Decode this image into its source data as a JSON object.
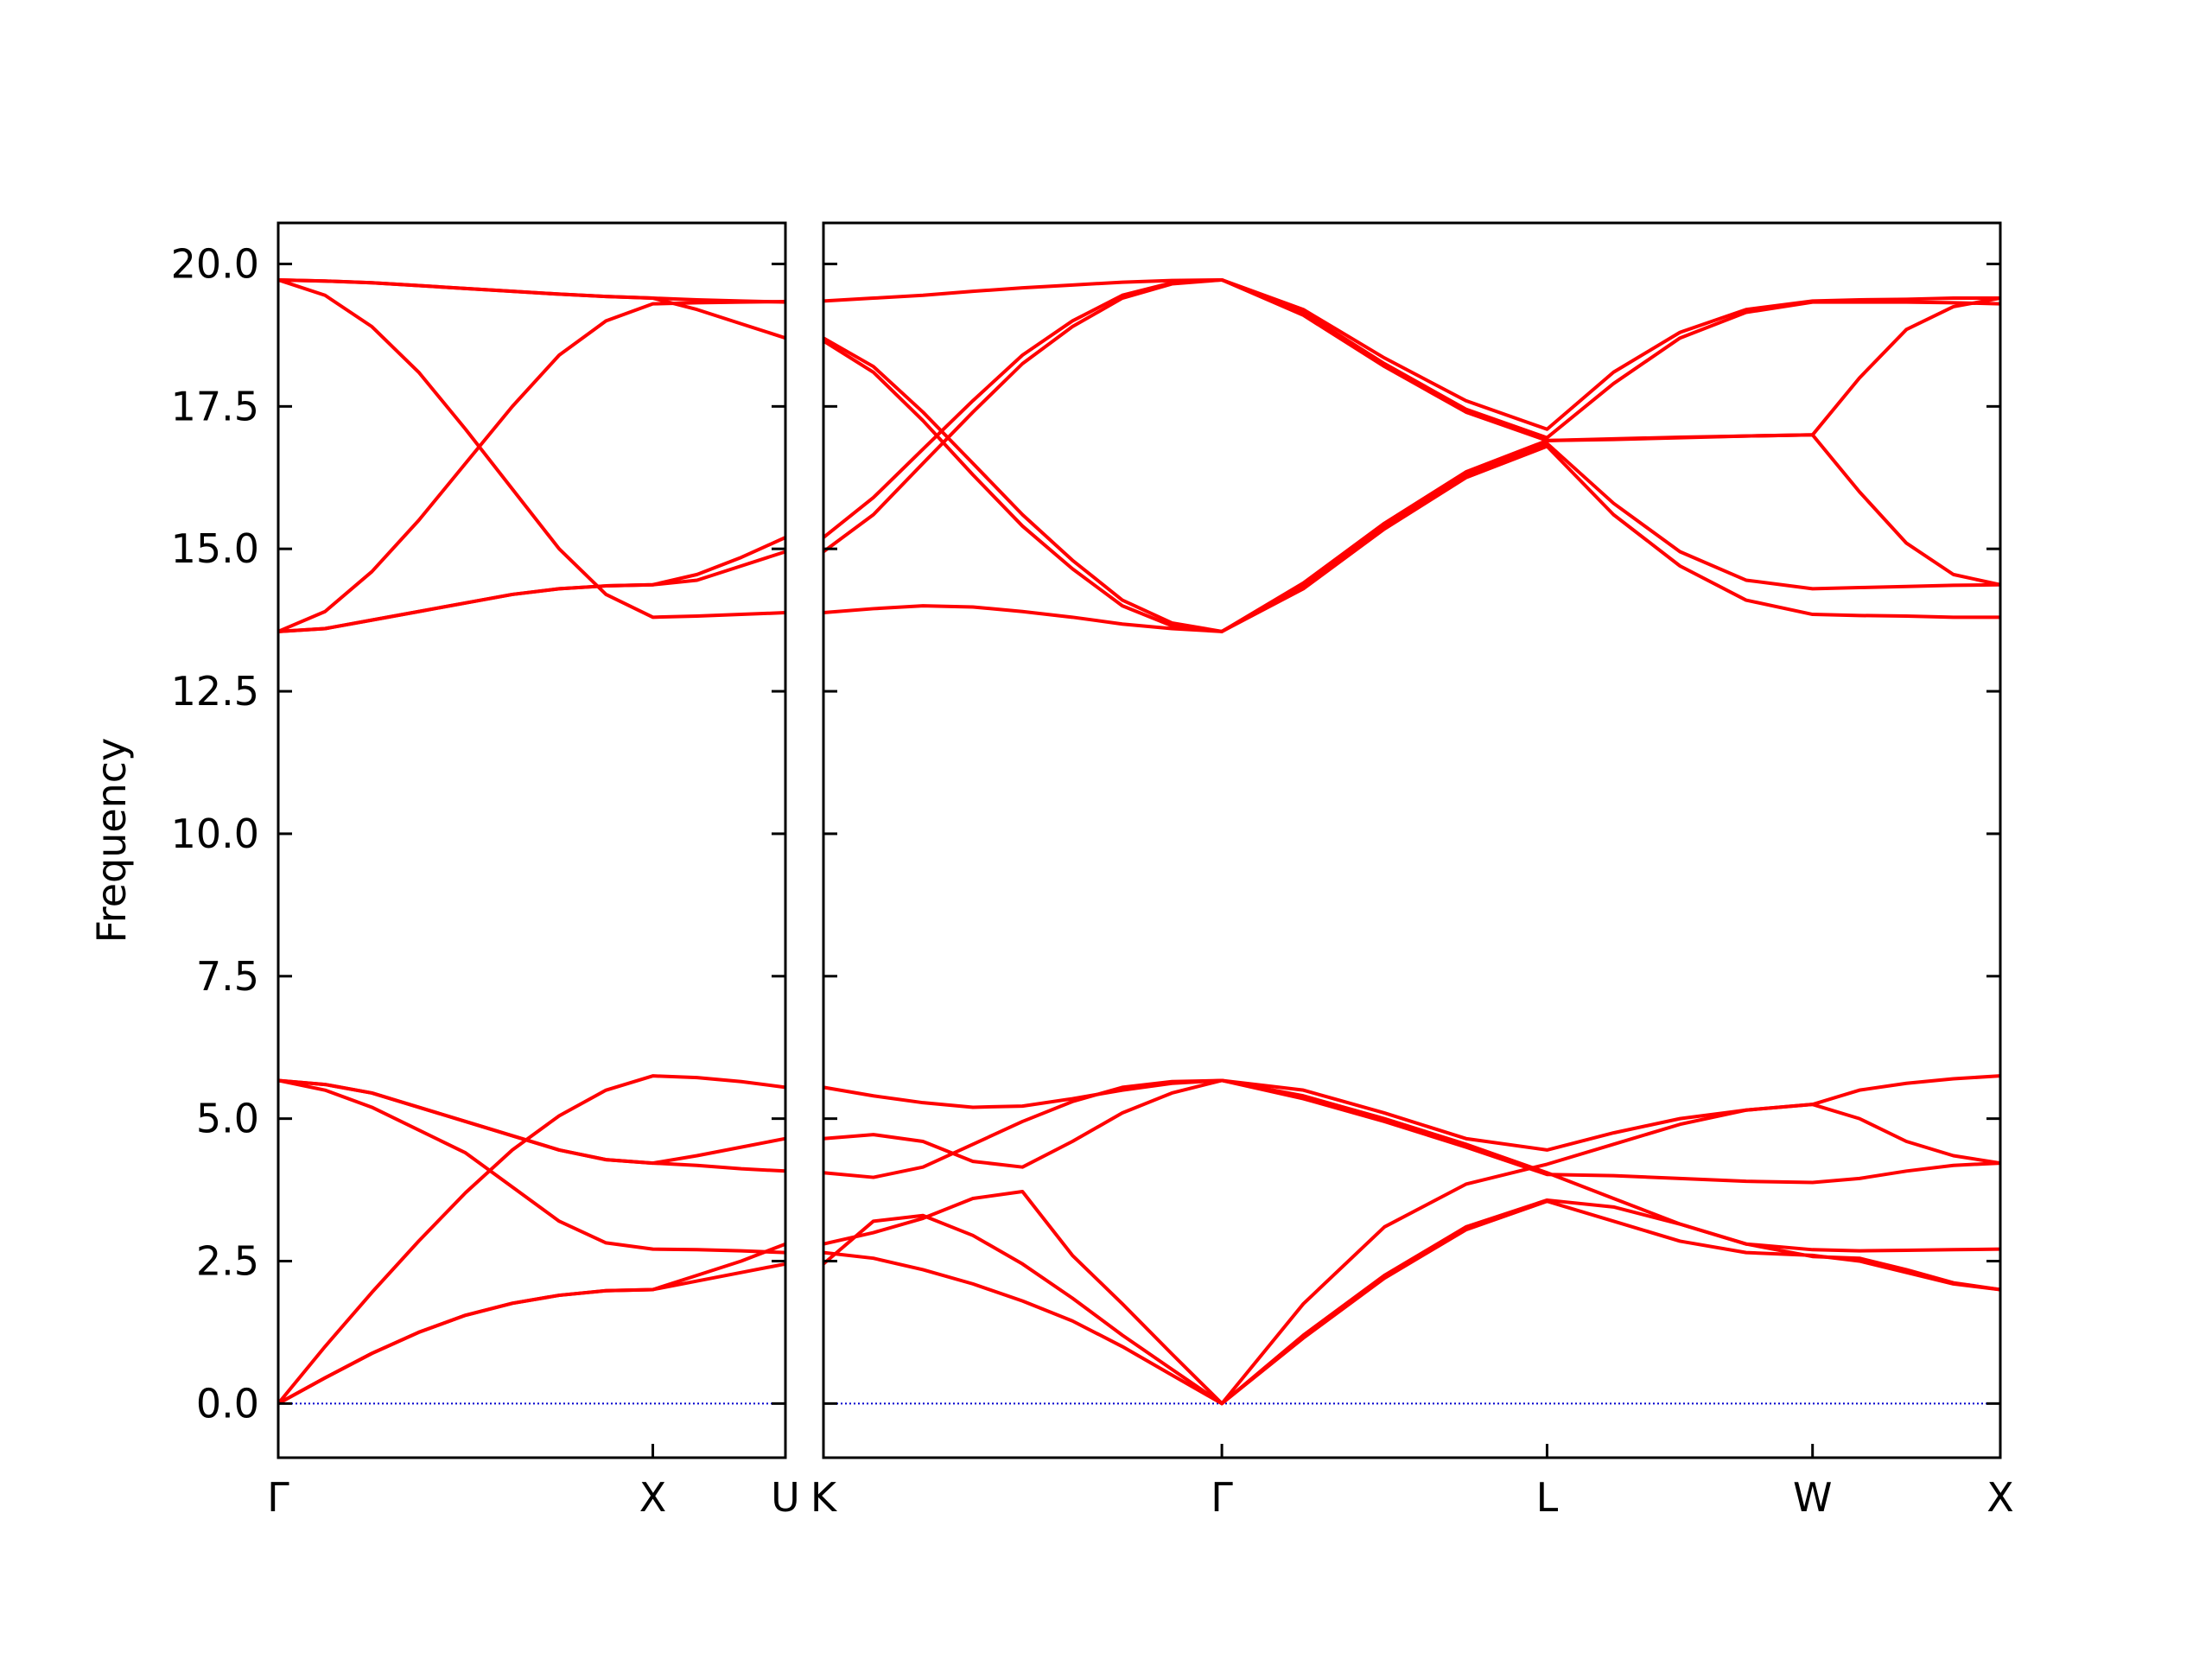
{
  "chart_data": [
    {
      "type": "line",
      "ylabel": "Frequency",
      "x": [
        0,
        0.125,
        0.25,
        0.375,
        0.5,
        0.625,
        0.75,
        0.875,
        1,
        1.118,
        1.236,
        1.354
      ],
      "xlim": [
        0,
        1.354
      ],
      "xticks": [
        {
          "value": 0,
          "label": "Γ"
        },
        {
          "value": 1,
          "label": "X"
        },
        {
          "value": 1.354,
          "label": "U"
        }
      ],
      "ylim": [
        -0.95,
        20.72
      ],
      "yticks": [
        {
          "value": 0,
          "label": "0.0"
        },
        2.5,
        {
          "value": 5,
          "label": "5.0"
        },
        7.5,
        {
          "value": 10,
          "label": "10.0"
        },
        12.5,
        {
          "value": 15,
          "label": "15.0"
        },
        17.5,
        {
          "value": 20,
          "label": "20.0"
        }
      ],
      "hlines": [
        {
          "y": 0,
          "color": "#0000cd",
          "style": "dotted"
        }
      ],
      "series": [
        {
          "color": "#ff0000",
          "values": [
            0,
            0.45,
            0.88,
            1.25,
            1.55,
            1.76,
            1.9,
            1.98,
            2.0,
            2.15,
            2.3,
            2.45
          ]
        },
        {
          "color": "#ff0000",
          "values": [
            0,
            0.45,
            0.88,
            1.25,
            1.55,
            1.76,
            1.9,
            1.98,
            2.0,
            2.25,
            2.5,
            2.8
          ]
        },
        {
          "color": "#ff0000",
          "values": [
            0,
            1.0,
            1.95,
            2.85,
            3.7,
            4.45,
            5.05,
            5.5,
            5.75,
            5.72,
            5.65,
            5.55
          ]
        },
        {
          "color": "#ff0000",
          "values": [
            5.67,
            5.6,
            5.45,
            5.2,
            4.95,
            4.7,
            4.45,
            4.28,
            4.22,
            4.35,
            4.5,
            4.65
          ]
        },
        {
          "color": "#ff0000",
          "values": [
            5.67,
            5.6,
            5.45,
            5.2,
            4.95,
            4.7,
            4.45,
            4.28,
            4.22,
            4.18,
            4.12,
            4.08
          ]
        },
        {
          "color": "#ff0000",
          "values": [
            5.67,
            5.5,
            5.2,
            4.8,
            4.4,
            3.8,
            3.2,
            2.82,
            2.71,
            2.7,
            2.68,
            2.65
          ]
        },
        {
          "color": "#ff0000",
          "values": [
            19.72,
            19.7,
            19.67,
            19.62,
            19.57,
            19.52,
            19.47,
            19.43,
            19.4,
            19.37,
            19.35,
            19.33
          ]
        },
        {
          "color": "#ff0000",
          "values": [
            19.72,
            19.7,
            19.67,
            19.62,
            19.57,
            19.52,
            19.47,
            19.43,
            19.4,
            19.2,
            18.95,
            18.7
          ]
        },
        {
          "color": "#ff0000",
          "values": [
            19.72,
            19.45,
            18.9,
            18.1,
            17.1,
            16.05,
            15.0,
            14.2,
            13.8,
            13.82,
            13.85,
            13.88
          ]
        },
        {
          "color": "#ff0000",
          "values": [
            13.55,
            13.9,
            14.6,
            15.5,
            16.5,
            17.5,
            18.4,
            19.0,
            19.3,
            19.32,
            19.33,
            19.34
          ]
        },
        {
          "color": "#ff0000",
          "values": [
            13.55,
            13.6,
            13.75,
            13.9,
            14.05,
            14.2,
            14.3,
            14.35,
            14.37,
            14.55,
            14.85,
            15.2
          ]
        },
        {
          "color": "#ff0000",
          "values": [
            13.55,
            13.6,
            13.75,
            13.9,
            14.05,
            14.2,
            14.3,
            14.35,
            14.37,
            14.45,
            14.7,
            14.95
          ]
        }
      ]
    },
    {
      "type": "line",
      "x": [
        0,
        0.133,
        0.265,
        0.398,
        0.53,
        0.663,
        0.796,
        0.928,
        1.061,
        1.278,
        1.494,
        1.711,
        1.927,
        2.104,
        2.281,
        2.457,
        2.634,
        2.759,
        2.884,
        3.009,
        3.134
      ],
      "xlim": [
        0,
        3.134
      ],
      "xticks": [
        {
          "value": 0,
          "label": "K"
        },
        {
          "value": 1.061,
          "label": "Γ"
        },
        {
          "value": 1.927,
          "label": "L"
        },
        {
          "value": 2.634,
          "label": "W"
        },
        {
          "value": 3.134,
          "label": "X"
        }
      ],
      "ylim": [
        -0.95,
        20.72
      ],
      "yticks": [
        0,
        2.5,
        5,
        7.5,
        10,
        12.5,
        15,
        17.5,
        20
      ],
      "hlines": [
        {
          "y": 0,
          "color": "#0000cd",
          "style": "dotted"
        }
      ],
      "series": [
        {
          "color": "#ff0000",
          "values": [
            2.65,
            2.55,
            2.35,
            2.1,
            1.8,
            1.45,
            1.0,
            0.5,
            0,
            1.15,
            2.2,
            3.05,
            3.55,
            3.2,
            2.85,
            2.65,
            2.6,
            2.5,
            2.3,
            2.1,
            2.0
          ]
        },
        {
          "color": "#ff0000",
          "values": [
            2.45,
            3.2,
            3.3,
            2.95,
            2.45,
            1.85,
            1.2,
            0.6,
            0,
            1.2,
            2.25,
            3.1,
            3.57,
            3.45,
            3.15,
            2.8,
            2.58,
            2.55,
            2.35,
            2.12,
            2.0
          ]
        },
        {
          "color": "#ff0000",
          "values": [
            2.8,
            3.0,
            3.25,
            3.6,
            3.72,
            2.6,
            1.75,
            0.87,
            0,
            1.75,
            3.1,
            3.85,
            4.2,
            4.55,
            4.9,
            5.15,
            5.25,
            5.0,
            4.6,
            4.35,
            4.22
          ]
        },
        {
          "color": "#ff0000",
          "values": [
            4.05,
            3.97,
            4.15,
            4.55,
            4.95,
            5.3,
            5.55,
            5.65,
            5.67,
            5.35,
            4.95,
            4.5,
            4.02,
            4.0,
            3.95,
            3.9,
            3.88,
            3.95,
            4.08,
            4.18,
            4.22
          ]
        },
        {
          "color": "#ff0000",
          "values": [
            4.65,
            4.72,
            4.6,
            4.25,
            4.15,
            4.6,
            5.1,
            5.45,
            5.67,
            5.4,
            5.0,
            4.55,
            4.05,
            3.6,
            3.15,
            2.8,
            2.7,
            2.68,
            2.69,
            2.7,
            2.71
          ]
        },
        {
          "color": "#ff0000",
          "values": [
            5.55,
            5.4,
            5.28,
            5.2,
            5.22,
            5.35,
            5.5,
            5.62,
            5.67,
            5.5,
            5.1,
            4.65,
            4.45,
            4.75,
            5.0,
            5.15,
            5.25,
            5.5,
            5.62,
            5.7,
            5.75
          ]
        },
        {
          "color": "#ff0000",
          "values": [
            13.88,
            13.95,
            14.0,
            13.98,
            13.9,
            13.8,
            13.68,
            13.6,
            13.55,
            14.35,
            15.4,
            16.3,
            16.85,
            15.8,
            14.95,
            14.45,
            14.3,
            14.32,
            14.34,
            14.36,
            14.37
          ]
        },
        {
          "color": "#ff0000",
          "values": [
            19.35,
            19.4,
            19.45,
            19.52,
            19.58,
            19.63,
            19.68,
            19.71,
            19.72,
            19.2,
            18.35,
            17.6,
            17.1,
            18.1,
            18.8,
            19.2,
            19.35,
            19.37,
            19.38,
            19.4,
            19.4
          ]
        },
        {
          "color": "#ff0000",
          "values": [
            18.7,
            18.2,
            17.4,
            16.5,
            15.6,
            14.8,
            14.1,
            13.7,
            13.55,
            14.3,
            15.35,
            16.25,
            16.8,
            15.6,
            14.7,
            14.1,
            13.85,
            13.83,
            13.82,
            13.8,
            13.8
          ]
        },
        {
          "color": "#ff0000",
          "values": [
            18.65,
            18.1,
            17.25,
            16.3,
            15.4,
            14.65,
            14.0,
            13.65,
            13.55,
            14.4,
            15.45,
            16.35,
            16.9,
            16.93,
            16.96,
            16.98,
            17.0,
            16.0,
            15.1,
            14.55,
            14.37
          ]
        },
        {
          "color": "#ff0000",
          "values": [
            15.2,
            15.9,
            16.75,
            17.6,
            18.4,
            19.0,
            19.45,
            19.67,
            19.72,
            19.15,
            18.25,
            17.45,
            16.95,
            17.9,
            18.7,
            19.15,
            19.33,
            19.33,
            19.33,
            19.32,
            19.3
          ]
        },
        {
          "color": "#ff0000",
          "values": [
            14.95,
            15.6,
            16.5,
            17.4,
            18.25,
            18.9,
            19.4,
            19.65,
            19.72,
            19.1,
            18.2,
            17.4,
            16.9,
            16.92,
            16.95,
            16.98,
            17.0,
            18.0,
            18.85,
            19.25,
            19.4
          ]
        }
      ]
    }
  ]
}
